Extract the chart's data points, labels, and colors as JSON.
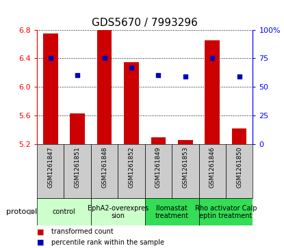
{
  "title": "GDS5670 / 7993296",
  "samples": [
    "GSM1261847",
    "GSM1261851",
    "GSM1261848",
    "GSM1261852",
    "GSM1261849",
    "GSM1261853",
    "GSM1261846",
    "GSM1261850"
  ],
  "bar_values": [
    6.75,
    5.63,
    6.8,
    6.35,
    5.29,
    5.25,
    6.65,
    5.42
  ],
  "dot_values_pct": [
    75,
    60,
    75,
    67,
    60,
    59,
    75,
    59
  ],
  "ylim_left": [
    5.2,
    6.8
  ],
  "ylim_right": [
    0,
    100
  ],
  "yticks_left": [
    5.2,
    5.6,
    6.0,
    6.4,
    6.8
  ],
  "yticks_right": [
    0,
    25,
    50,
    75,
    100
  ],
  "bar_color": "#cc0000",
  "dot_color": "#0000bb",
  "bar_width": 0.55,
  "protocols": [
    {
      "label": "control",
      "start": 0,
      "end": 2,
      "color": "#ccffcc"
    },
    {
      "label": "EphA2-overexpres\nsion",
      "start": 2,
      "end": 4,
      "color": "#ccffcc"
    },
    {
      "label": "Ilomastat\ntreatment",
      "start": 4,
      "end": 6,
      "color": "#33dd55"
    },
    {
      "label": "Rho activator Calp\neptin treatment",
      "start": 6,
      "end": 8,
      "color": "#33dd55"
    }
  ],
  "legend_items": [
    {
      "label": "transformed count",
      "color": "#cc0000"
    },
    {
      "label": "percentile rank within the sample",
      "color": "#0000bb"
    }
  ],
  "protocol_label": "protocol",
  "sample_bg_color": "#cccccc",
  "plot_bg_color": "#ffffff",
  "title_fontsize": 11,
  "axis_fontsize": 8,
  "sample_fontsize": 6.5,
  "proto_fontsize": 7,
  "legend_fontsize": 7
}
